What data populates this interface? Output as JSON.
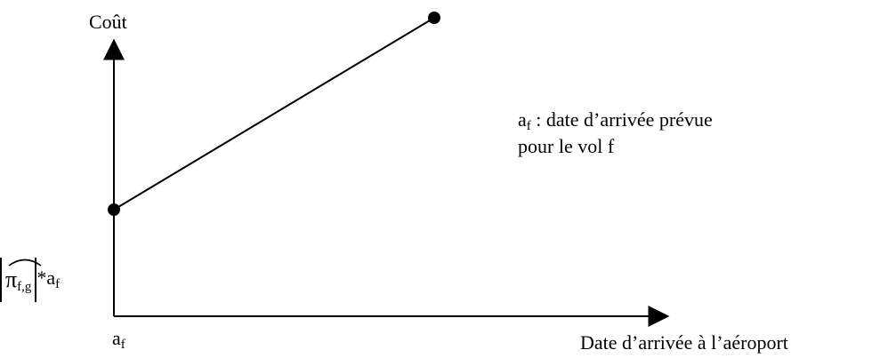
{
  "y_axis_label": "Coût",
  "x_axis_label": "Date d’arrivée à l’aéroport",
  "x_origin_label": {
    "base": "a",
    "sub": "f"
  },
  "note": {
    "symbol": "a",
    "sub": "f",
    "line1": " : date d’arrivée prévue",
    "line2": "pour le vol f"
  },
  "y_value_label": {
    "pi": "π",
    "pi_sub": "f,g",
    "times": "*",
    "a": "a",
    "a_sub": "f"
  }
}
